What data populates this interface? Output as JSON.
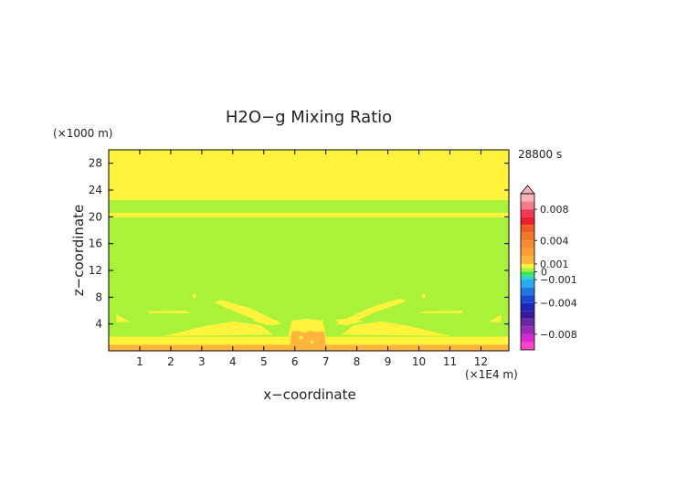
{
  "chart_data": {
    "type": "heatmap",
    "title": "H2O−g Mixing Ratio",
    "xlabel": "x−coordinate",
    "ylabel": "z−coordinate",
    "x_unit": "(×1E4 m)",
    "y_unit": "(×1000 m)",
    "time_label": "28800 s",
    "xlim": [
      0,
      12.9
    ],
    "ylim": [
      0,
      30
    ],
    "x_ticks": [
      1,
      2,
      3,
      4,
      5,
      6,
      7,
      8,
      9,
      10,
      11,
      12
    ],
    "y_ticks": [
      4,
      8,
      12,
      16,
      20,
      24,
      28
    ],
    "background_field": [
      {
        "z_from": 0,
        "z_to": 22.5,
        "value": 0.0003,
        "color": "#aaf23a"
      },
      {
        "z_from": 22.5,
        "z_to": 30,
        "value": 0.0007,
        "color": "#fff33b"
      },
      {
        "z_from": 19.9,
        "z_to": 20.6,
        "value": 0.0007,
        "color": "#fff33b"
      },
      {
        "z_from": 0.9,
        "z_to": 2.1,
        "value": 0.0007,
        "color": "#fff33b"
      },
      {
        "z_from": 0,
        "z_to": 0.9,
        "value": 0.0011,
        "color": "#ffb43c"
      }
    ],
    "features": [
      {
        "value": 0.0007,
        "color": "#fff33b",
        "points": [
          [
            0.25,
            5.4
          ],
          [
            0.7,
            4.3
          ],
          [
            0.25,
            4.3
          ]
        ]
      },
      {
        "value": 0.0007,
        "color": "#fff33b",
        "points": [
          [
            12.65,
            5.4
          ],
          [
            12.25,
            4.3
          ],
          [
            12.65,
            4.3
          ]
        ]
      },
      {
        "value": 0.0007,
        "color": "#fff33b",
        "points": [
          [
            1.3,
            5.9
          ],
          [
            2.4,
            6.0
          ],
          [
            2.7,
            5.6
          ],
          [
            1.3,
            5.6
          ]
        ]
      },
      {
        "value": 0.0007,
        "color": "#fff33b",
        "points": [
          [
            10.2,
            5.9
          ],
          [
            11.4,
            6.0
          ],
          [
            11.4,
            5.6
          ],
          [
            10.0,
            5.6
          ]
        ]
      },
      {
        "value": 0.0007,
        "color": "#fff33b",
        "points": [
          [
            1.8,
            2.2
          ],
          [
            3.0,
            3.6
          ],
          [
            4.0,
            4.4
          ],
          [
            4.9,
            3.8
          ],
          [
            5.3,
            2.4
          ]
        ]
      },
      {
        "value": 0.0007,
        "color": "#fff33b",
        "points": [
          [
            7.5,
            2.4
          ],
          [
            7.9,
            3.8
          ],
          [
            8.8,
            4.4
          ],
          [
            9.8,
            3.6
          ],
          [
            11.0,
            2.2
          ]
        ]
      },
      {
        "value": 0.0007,
        "color": "#fff33b",
        "points": [
          [
            3.6,
            7.6
          ],
          [
            4.6,
            6.3
          ],
          [
            5.6,
            4.0
          ],
          [
            5.2,
            3.8
          ],
          [
            4.2,
            5.6
          ],
          [
            3.4,
            7.2
          ]
        ]
      },
      {
        "value": 0.0007,
        "color": "#fff33b",
        "points": [
          [
            9.4,
            7.8
          ],
          [
            8.4,
            6.4
          ],
          [
            7.3,
            4.0
          ],
          [
            7.7,
            3.8
          ],
          [
            8.6,
            5.8
          ],
          [
            9.6,
            7.4
          ]
        ]
      },
      {
        "value": 0.0007,
        "color": "#fff33b",
        "points": [
          [
            5.9,
            4.5
          ],
          [
            6.4,
            4.8
          ],
          [
            6.9,
            4.5
          ],
          [
            7.0,
            2.2
          ],
          [
            5.8,
            2.2
          ]
        ]
      },
      {
        "value": 0.0007,
        "color": "#fff33b",
        "points": [
          [
            4.6,
            4.6
          ],
          [
            5.2,
            4.9
          ],
          [
            5.5,
            4.4
          ],
          [
            5.1,
            3.8
          ]
        ]
      },
      {
        "value": 0.0007,
        "color": "#fff33b",
        "points": [
          [
            8.2,
            4.4
          ],
          [
            7.8,
            4.9
          ],
          [
            7.3,
            4.6
          ],
          [
            7.6,
            3.8
          ]
        ]
      },
      {
        "value": 0.0011,
        "color": "#ffb43c",
        "points": [
          [
            5.85,
            0.5
          ],
          [
            5.9,
            2.9
          ],
          [
            6.1,
            3.0
          ],
          [
            6.3,
            2.7
          ],
          [
            6.5,
            3.0
          ],
          [
            6.7,
            2.8
          ],
          [
            6.95,
            2.9
          ],
          [
            7.0,
            0.5
          ]
        ]
      }
    ],
    "dots": [
      {
        "x": 2.75,
        "z": 8.2,
        "value": 0.0007
      },
      {
        "x": 10.15,
        "z": 8.2,
        "value": 0.0007
      },
      {
        "x": 6.2,
        "z": 2.0,
        "value": 0.0007
      },
      {
        "x": 6.55,
        "z": 1.3,
        "value": 0.0007
      }
    ],
    "colorbar": {
      "labels": [
        {
          "text": "0.008",
          "value": 0.008
        },
        {
          "text": "0.004",
          "value": 0.004
        },
        {
          "text": "0.001",
          "value": 0.001
        },
        {
          "text": "0",
          "value": 0
        },
        {
          "text": "−0.001",
          "value": -0.001
        },
        {
          "text": "−0.004",
          "value": -0.004
        },
        {
          "text": "−0.008",
          "value": -0.008
        }
      ],
      "segments": [
        {
          "from": 0.009,
          "to": 0.01,
          "color": "#f7b4b8"
        },
        {
          "from": 0.008,
          "to": 0.009,
          "color": "#f17d88"
        },
        {
          "from": 0.007,
          "to": 0.008,
          "color": "#ee3a55"
        },
        {
          "from": 0.006,
          "to": 0.007,
          "color": "#e8202e"
        },
        {
          "from": 0.005,
          "to": 0.006,
          "color": "#f05a22"
        },
        {
          "from": 0.004,
          "to": 0.005,
          "color": "#f4782a"
        },
        {
          "from": 0.003,
          "to": 0.004,
          "color": "#f78b30"
        },
        {
          "from": 0.002,
          "to": 0.003,
          "color": "#fb9f35"
        },
        {
          "from": 0.001,
          "to": 0.002,
          "color": "#ffb43c"
        },
        {
          "from": 0.0005,
          "to": 0.001,
          "color": "#fff33b"
        },
        {
          "from": 0.0,
          "to": 0.0005,
          "color": "#aaf23a"
        },
        {
          "from": -0.0005,
          "to": 0.0,
          "color": "#3ce05a"
        },
        {
          "from": -0.001,
          "to": -0.0005,
          "color": "#2fd7c8"
        },
        {
          "from": -0.002,
          "to": -0.001,
          "color": "#2aaaf0"
        },
        {
          "from": -0.003,
          "to": -0.002,
          "color": "#1f78e0"
        },
        {
          "from": -0.004,
          "to": -0.003,
          "color": "#1c48d6"
        },
        {
          "from": -0.005,
          "to": -0.004,
          "color": "#1e26b4"
        },
        {
          "from": -0.006,
          "to": -0.005,
          "color": "#3a1a9c"
        },
        {
          "from": -0.007,
          "to": -0.006,
          "color": "#6a2aa8"
        },
        {
          "from": -0.008,
          "to": -0.007,
          "color": "#9a2ab8"
        },
        {
          "from": -0.009,
          "to": -0.008,
          "color": "#d42ad0"
        },
        {
          "from": -0.01,
          "to": -0.009,
          "color": "#ff44c4"
        }
      ],
      "range": [
        -0.01,
        0.01
      ],
      "extend_top": true,
      "top_arrow_color": "#f7b4b8"
    },
    "grid": false,
    "legend": "right"
  }
}
